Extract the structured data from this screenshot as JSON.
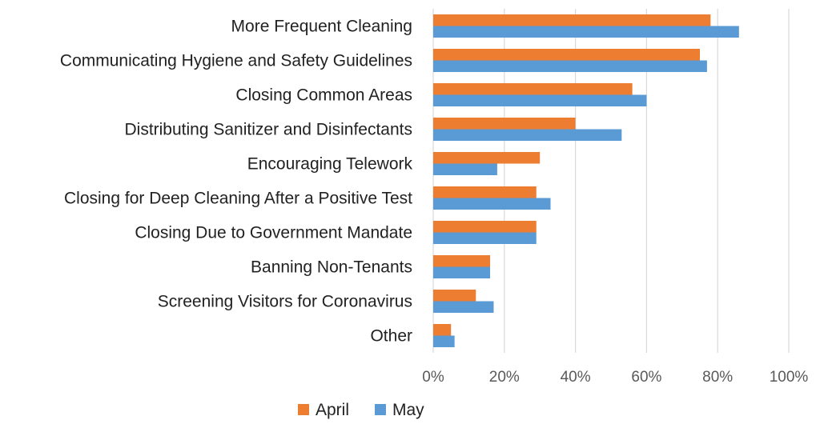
{
  "chart_data": {
    "type": "bar",
    "orientation": "horizontal",
    "categories": [
      "More Frequent Cleaning",
      "Communicating Hygiene and Safety Guidelines",
      "Closing Common Areas",
      "Distributing Sanitizer and Disinfectants",
      "Encouraging Telework",
      "Closing for Deep Cleaning After a Positive Test",
      "Closing Due to Government Mandate",
      "Banning Non-Tenants",
      "Screening Visitors for Coronavirus",
      "Other"
    ],
    "series": [
      {
        "name": "April",
        "color": "#ed7d31",
        "values": [
          78,
          75,
          56,
          40,
          30,
          29,
          29,
          16,
          12,
          5
        ]
      },
      {
        "name": "May",
        "color": "#5b9bd5",
        "values": [
          86,
          77,
          60,
          53,
          18,
          33,
          29,
          16,
          17,
          6
        ]
      }
    ],
    "xlim": [
      0,
      100
    ],
    "xticks": [
      0,
      20,
      40,
      60,
      80,
      100
    ],
    "xtick_labels": [
      "0%",
      "20%",
      "40%",
      "60%",
      "80%",
      "100%"
    ],
    "value_unit": "percent",
    "grid": "vertical",
    "legend": {
      "position": "bottom-left",
      "items": [
        "April",
        "May"
      ]
    },
    "title": "",
    "xlabel": "",
    "ylabel": ""
  }
}
